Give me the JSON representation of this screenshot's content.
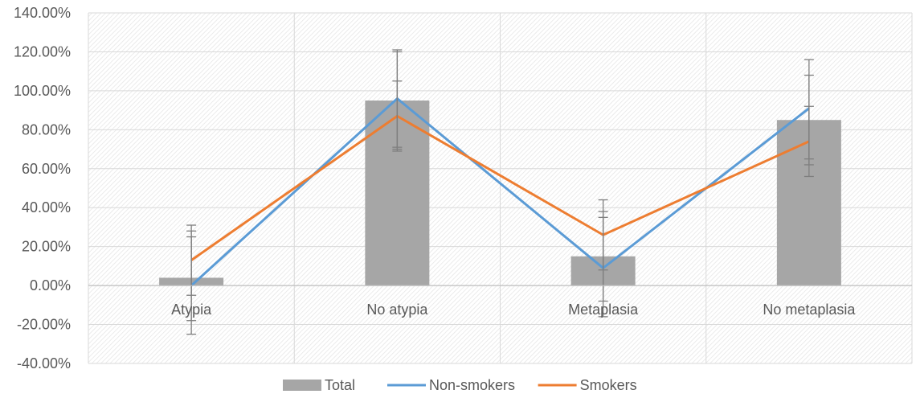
{
  "chart_data": {
    "type": "bar",
    "categories": [
      "Atypia",
      "No atypia",
      "Metaplasia",
      "No metaplasia"
    ],
    "ylim": [
      -0.4,
      1.4
    ],
    "yticks": [
      "140.00%",
      "120.00%",
      "100.00%",
      "80.00%",
      "60.00%",
      "40.00%",
      "20.00%",
      "0.00%",
      "-20.00%",
      "-40.00%"
    ],
    "grid": true,
    "legend_position": "bottom",
    "series": [
      {
        "name": "Total",
        "kind": "bar",
        "color": "#a6a6a6",
        "values": [
          0.04,
          0.95,
          0.15,
          0.85
        ],
        "error_low": [
          -0.18,
          0.7,
          -0.08,
          0.62
        ],
        "error_high": [
          0.28,
          1.2,
          0.38,
          1.08
        ]
      },
      {
        "name": "Non-smokers",
        "kind": "line",
        "color": "#5b9bd5",
        "values": [
          0.0,
          0.96,
          0.09,
          0.91
        ],
        "error_low": [
          -0.25,
          0.71,
          -0.16,
          0.65
        ],
        "error_high": [
          0.25,
          1.21,
          0.35,
          1.16
        ]
      },
      {
        "name": "Smokers",
        "kind": "line",
        "color": "#ed7d31",
        "values": [
          0.13,
          0.87,
          0.26,
          0.74
        ],
        "error_low": [
          -0.05,
          0.69,
          0.08,
          0.56
        ],
        "error_high": [
          0.31,
          1.05,
          0.44,
          0.92
        ]
      }
    ]
  }
}
